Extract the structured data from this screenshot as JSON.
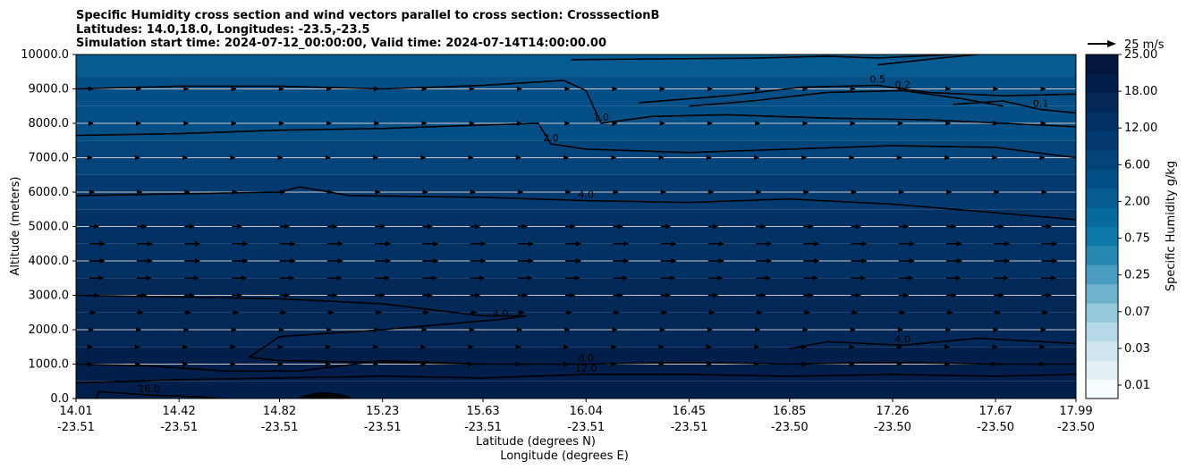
{
  "chart_data": {
    "type": "heatmap",
    "title_lines": [
      "Specific Humidity cross section and wind vectors parallel to cross section: CrosssectionB",
      "Latitudes: 14.0,18.0, Longitudes: -23.5,-23.5",
      "Simulation start time: 2024-07-12_00:00:00, Valid time: 2024-07-14T14:00:00.00"
    ],
    "ylabel": "Altitude (meters)",
    "xlabel_lat": "Latitude (degrees N)",
    "xlabel_lon": "Longitude (degrees E)",
    "ylim": [
      0,
      10000
    ],
    "yticks": [
      "0.0",
      "1000.0",
      "2000.0",
      "3000.0",
      "4000.0",
      "5000.0",
      "6000.0",
      "7000.0",
      "8000.0",
      "9000.0",
      "10000.0"
    ],
    "xticks_lat": [
      "14.01",
      "14.42",
      "14.82",
      "15.23",
      "15.63",
      "16.04",
      "16.45",
      "16.85",
      "17.26",
      "17.67",
      "17.99"
    ],
    "xticks_lon": [
      "-23.51",
      "-23.51",
      "-23.51",
      "-23.51",
      "-23.51",
      "-23.51",
      "-23.51",
      "-23.50",
      "-23.50",
      "-23.50",
      "-23.50"
    ],
    "colorbar": {
      "label": "Specific Humidity g/kg",
      "tick_labels": [
        "0.01",
        "0.03",
        "0.07",
        "0.25",
        "0.75",
        "2.00",
        "6.00",
        "12.00",
        "18.00",
        "25.00"
      ],
      "colors": [
        "#f7fcfe",
        "#e3f1f6",
        "#cfe6ee",
        "#b5d9e6",
        "#96c8db",
        "#6fb2ce",
        "#4a9cc0",
        "#2888b2",
        "#0c78a8",
        "#066a9c",
        "#055c91",
        "#045086",
        "#03457b",
        "#033b70",
        "#023164",
        "#012857",
        "#011f4a",
        "#01173d"
      ]
    },
    "wind_reference": {
      "label": "25 m/s",
      "speed_ms": 25
    },
    "humidity_bands": [
      {
        "altitude_m": 9750,
        "value": 1.0
      },
      {
        "altitude_m": 9000,
        "value": 1.2
      },
      {
        "altitude_m": 8000,
        "value": 1.6
      },
      {
        "altitude_m": 7000,
        "value": 2.5
      },
      {
        "altitude_m": 6000,
        "value": 3.8
      },
      {
        "altitude_m": 5000,
        "value": 5.0
      },
      {
        "altitude_m": 4000,
        "value": 6.5
      },
      {
        "altitude_m": 3000,
        "value": 7.5
      },
      {
        "altitude_m": 2000,
        "value": 9.0
      },
      {
        "altitude_m": 1000,
        "value": 11.0
      },
      {
        "altitude_m": 0,
        "value": 15.0
      }
    ],
    "contours": [
      {
        "label": "0.5",
        "points": [
          [
            15.98,
            9850
          ],
          [
            16.3,
            9870
          ],
          [
            16.7,
            9890
          ],
          [
            17.0,
            9950
          ],
          [
            17.2,
            9900
          ],
          [
            17.5,
            10000
          ]
        ]
      },
      {
        "label": "0.5",
        "points": [
          [
            16.25,
            8600
          ],
          [
            16.6,
            8800
          ],
          [
            16.9,
            9050
          ],
          [
            17.2,
            9100
          ],
          [
            17.4,
            8900
          ],
          [
            17.7,
            8800
          ],
          [
            17.99,
            8850
          ]
        ]
      },
      {
        "label": "0.5",
        "points": [
          [
            17.2,
            9700
          ],
          [
            17.45,
            9900
          ],
          [
            17.6,
            10000
          ]
        ]
      },
      {
        "label": "0.2",
        "points": [
          [
            16.45,
            8500
          ],
          [
            16.7,
            8650
          ],
          [
            17.0,
            8900
          ],
          [
            17.3,
            8950
          ],
          [
            17.55,
            8700
          ],
          [
            17.7,
            8500
          ]
        ]
      },
      {
        "label": "0.1",
        "points": [
          [
            17.5,
            8550
          ],
          [
            17.7,
            8650
          ],
          [
            17.85,
            8400
          ],
          [
            17.99,
            8300
          ]
        ]
      },
      {
        "label": "1.0",
        "points": [
          [
            14.01,
            9000
          ],
          [
            14.42,
            9080
          ],
          [
            14.82,
            9080
          ],
          [
            15.23,
            9000
          ],
          [
            15.63,
            9100
          ],
          [
            15.95,
            9250
          ],
          [
            16.04,
            8950
          ],
          [
            16.1,
            8000
          ],
          [
            16.3,
            8200
          ],
          [
            16.6,
            8250
          ],
          [
            17.0,
            8150
          ],
          [
            17.4,
            8100
          ],
          [
            17.7,
            8000
          ],
          [
            17.99,
            7900
          ]
        ]
      },
      {
        "label": "2.0",
        "points": [
          [
            14.01,
            7650
          ],
          [
            14.42,
            7700
          ],
          [
            14.82,
            7800
          ],
          [
            15.23,
            7850
          ],
          [
            15.63,
            7950
          ],
          [
            15.85,
            8000
          ],
          [
            15.9,
            7400
          ],
          [
            16.04,
            7250
          ],
          [
            16.45,
            7150
          ],
          [
            16.85,
            7250
          ],
          [
            17.26,
            7350
          ],
          [
            17.67,
            7300
          ],
          [
            17.99,
            7000
          ]
        ]
      },
      {
        "label": "4.0",
        "points": [
          [
            14.01,
            5900
          ],
          [
            14.42,
            5950
          ],
          [
            14.82,
            6000
          ],
          [
            14.9,
            6150
          ],
          [
            15.1,
            5900
          ],
          [
            15.63,
            5850
          ],
          [
            16.04,
            5750
          ],
          [
            16.45,
            5700
          ],
          [
            16.85,
            5800
          ],
          [
            17.26,
            5650
          ],
          [
            17.67,
            5400
          ],
          [
            17.99,
            5200
          ]
        ]
      },
      {
        "label": "4.0",
        "points": [
          [
            14.01,
            3000
          ],
          [
            14.42,
            2950
          ],
          [
            14.82,
            2900
          ],
          [
            15.23,
            2750
          ],
          [
            15.63,
            2400
          ],
          [
            15.8,
            2400
          ],
          [
            15.7,
            2300
          ],
          [
            15.23,
            2000
          ],
          [
            14.82,
            1800
          ],
          [
            14.7,
            1200
          ],
          [
            14.82,
            1100
          ],
          [
            15.23,
            1050
          ],
          [
            15.63,
            1000
          ]
        ]
      },
      {
        "label": "4.0",
        "points": [
          [
            16.85,
            1450
          ],
          [
            17.0,
            1650
          ],
          [
            17.3,
            1550
          ],
          [
            17.6,
            1750
          ],
          [
            17.99,
            1600
          ]
        ]
      },
      {
        "label": "8.0",
        "points": [
          [
            14.01,
            1000
          ],
          [
            14.3,
            950
          ],
          [
            14.6,
            800
          ],
          [
            14.9,
            800
          ],
          [
            15.23,
            1100
          ],
          [
            15.63,
            1000
          ],
          [
            16.04,
            1000
          ],
          [
            16.45,
            1050
          ],
          [
            16.85,
            1000
          ],
          [
            17.26,
            1050
          ],
          [
            17.67,
            1000
          ],
          [
            17.99,
            1000
          ]
        ]
      },
      {
        "label": "12.0",
        "points": [
          [
            14.01,
            450
          ],
          [
            14.42,
            550
          ],
          [
            14.82,
            600
          ],
          [
            15.23,
            650
          ],
          [
            15.63,
            600
          ],
          [
            16.04,
            700
          ],
          [
            16.45,
            700
          ],
          [
            16.85,
            650
          ],
          [
            17.26,
            700
          ],
          [
            17.67,
            650
          ],
          [
            17.99,
            700
          ]
        ]
      },
      {
        "label": "16.0",
        "points": [
          [
            14.09,
            0
          ],
          [
            14.1,
            200
          ],
          [
            14.2,
            150
          ],
          [
            14.3,
            100
          ],
          [
            14.5,
            50
          ],
          [
            14.6,
            0
          ]
        ]
      }
    ],
    "wind_rows": [
      {
        "altitude_m": 9000,
        "speed_ms": 4
      },
      {
        "altitude_m": 8000,
        "speed_ms": 4
      },
      {
        "altitude_m": 7000,
        "speed_ms": 3
      },
      {
        "altitude_m": 6000,
        "speed_ms": 5
      },
      {
        "altitude_m": 5000,
        "speed_ms": 9
      },
      {
        "altitude_m": 4500,
        "speed_ms": 14
      },
      {
        "altitude_m": 4000,
        "speed_ms": 14
      },
      {
        "altitude_m": 3500,
        "speed_ms": 13
      },
      {
        "altitude_m": 3000,
        "speed_ms": 9
      },
      {
        "altitude_m": 2500,
        "speed_ms": 6
      },
      {
        "altitude_m": 2000,
        "speed_ms": 4
      },
      {
        "altitude_m": 1500,
        "speed_ms": 3
      },
      {
        "altitude_m": 1000,
        "speed_ms": 2
      }
    ],
    "terrain": {
      "peak_lat": 15.0,
      "peak_altitude_m": 200
    }
  }
}
